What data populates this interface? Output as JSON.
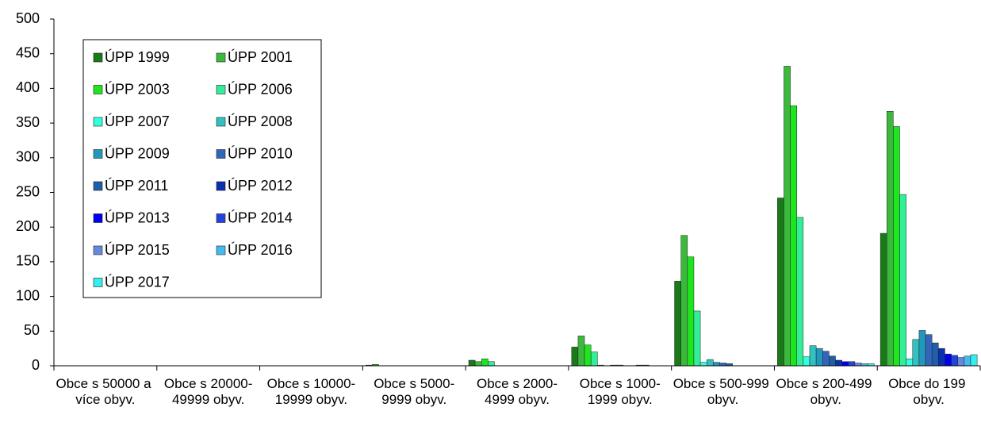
{
  "chart_data": {
    "type": "bar",
    "categories": [
      "Obce s 50000 a více obyv.",
      "Obce s 20000-49999 obyv.",
      "Obce s 10000-19999 obyv.",
      "Obce s 5000-9999 obyv.",
      "Obce s 2000-4999 obyv.",
      "Obce s 1000-1999 obyv.",
      "Obce s 500-999 obyv.",
      "Obce s 200-499 obyv.",
      "Obce do 199 obyv."
    ],
    "series": [
      {
        "name": "ÚPP 1999",
        "color": "#1a7a1a",
        "values": [
          0,
          0,
          0,
          1,
          8,
          27,
          122,
          242,
          191
        ]
      },
      {
        "name": "ÚPP 2001",
        "color": "#3cb93c",
        "values": [
          0,
          0,
          0,
          2,
          6,
          43,
          188,
          432,
          367
        ]
      },
      {
        "name": "ÚPP 2003",
        "color": "#1ee61e",
        "values": [
          0,
          0,
          0,
          0,
          10,
          30,
          157,
          375,
          345
        ]
      },
      {
        "name": "ÚPP 2006",
        "color": "#33ee99",
        "values": [
          0,
          0,
          0,
          0,
          6,
          20,
          79,
          214,
          247
        ]
      },
      {
        "name": "ÚPP 2007",
        "color": "#33ffdd",
        "values": [
          0,
          0,
          0,
          0,
          0,
          1,
          5,
          13,
          10
        ]
      },
      {
        "name": "ÚPP 2008",
        "color": "#33c0c0",
        "values": [
          0,
          0,
          0,
          0,
          0,
          0,
          9,
          29,
          38
        ]
      },
      {
        "name": "ÚPP 2009",
        "color": "#2299bb",
        "values": [
          0,
          0,
          0,
          0,
          0,
          1,
          5,
          25,
          51
        ]
      },
      {
        "name": "ÚPP 2010",
        "color": "#3366bb",
        "values": [
          0,
          0,
          0,
          0,
          0,
          1,
          4,
          21,
          45
        ]
      },
      {
        "name": "ÚPP 2011",
        "color": "#1f5faa",
        "values": [
          0,
          0,
          0,
          0,
          0,
          0,
          3,
          14,
          33
        ]
      },
      {
        "name": "ÚPP 2012",
        "color": "#0a2fb0",
        "values": [
          0,
          0,
          0,
          0,
          0,
          0,
          0,
          8,
          25
        ]
      },
      {
        "name": "ÚPP 2013",
        "color": "#0000ee",
        "values": [
          0,
          0,
          0,
          0,
          0,
          1,
          0,
          6,
          17
        ]
      },
      {
        "name": "ÚPP 2014",
        "color": "#2244dd",
        "values": [
          0,
          0,
          0,
          0,
          0,
          1,
          0,
          6,
          15
        ]
      },
      {
        "name": "ÚPP 2015",
        "color": "#6688dd",
        "values": [
          0,
          0,
          0,
          0,
          0,
          0,
          0,
          4,
          12
        ]
      },
      {
        "name": "ÚPP 2016",
        "color": "#44bbee",
        "values": [
          0,
          0,
          0,
          0,
          0,
          0,
          0,
          3,
          14
        ]
      },
      {
        "name": "ÚPP 2017",
        "color": "#33eeee",
        "values": [
          0,
          0,
          0,
          0,
          0,
          0,
          0,
          3,
          16
        ]
      }
    ],
    "ylim": [
      0,
      500
    ],
    "yticks": [
      0,
      50,
      100,
      150,
      200,
      250,
      300,
      350,
      400,
      450,
      500
    ],
    "grid": false,
    "legend": "top-left"
  }
}
